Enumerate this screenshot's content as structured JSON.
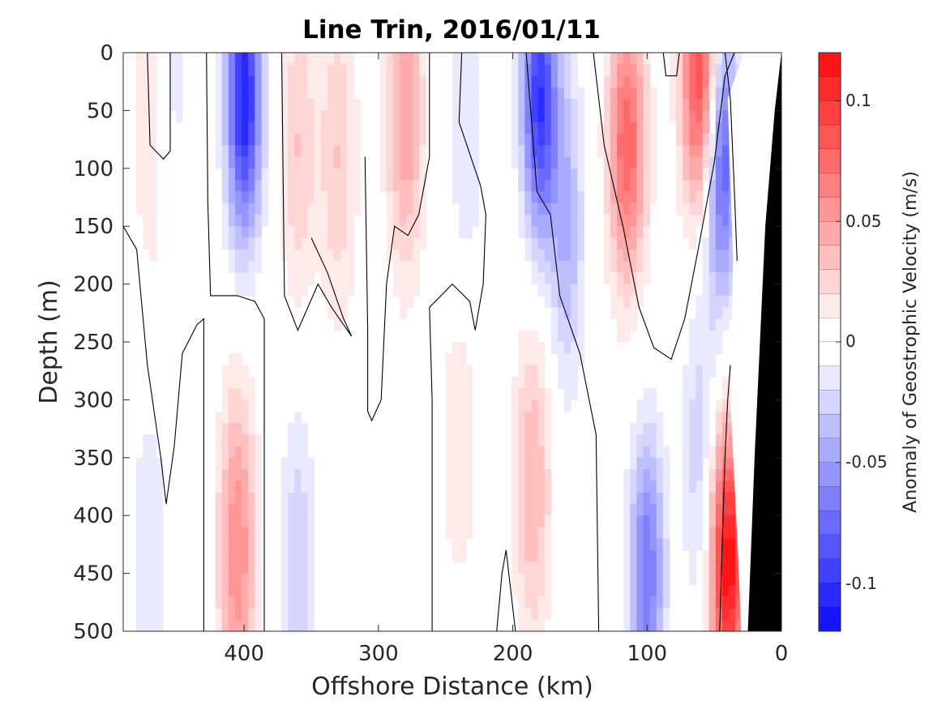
{
  "chart_data": {
    "type": "heatmap",
    "title": "Line Trin, 2016/01/11",
    "xlabel": "Offshore Distance (km)",
    "ylabel": "Depth (m)",
    "xlim": [
      490,
      0
    ],
    "ylim": [
      0,
      500
    ],
    "x_reversed": true,
    "y_reversed": true,
    "xticks": [
      "400",
      "300",
      "200",
      "100",
      "0"
    ],
    "yticks": [
      "0",
      "50",
      "100",
      "150",
      "200",
      "250",
      "300",
      "350",
      "400",
      "450",
      "500"
    ],
    "colorbar": {
      "label": "Anomaly of Geostrophic Velocity (m/s)",
      "range": [
        -0.12,
        0.12
      ],
      "step": 0.01,
      "ticks": [
        "0.1",
        "0.05",
        "0",
        "-0.05",
        "-0.1"
      ],
      "positive_color": "#ff0000",
      "negative_color": "#0000ff",
      "zero_color": "#ffffff"
    },
    "zero_contour_color": "#000000",
    "land_color": "#000000",
    "features": [
      {
        "kind": "positive",
        "x": 470,
        "depth": 40,
        "peak": 0.02
      },
      {
        "kind": "positive",
        "x": 460,
        "depth": 150,
        "peak": 0.01
      },
      {
        "kind": "negative",
        "x": 455,
        "depth": 50,
        "peak": -0.02
      },
      {
        "kind": "negative",
        "x": 400,
        "depth": 40,
        "peak": -0.11
      },
      {
        "kind": "positive",
        "x": 405,
        "depth": 430,
        "peak": 0.06
      },
      {
        "kind": "positive",
        "x": 360,
        "depth": 80,
        "peak": 0.03
      },
      {
        "kind": "positive",
        "x": 330,
        "depth": 90,
        "peak": 0.03
      },
      {
        "kind": "negative",
        "x": 360,
        "depth": 450,
        "peak": -0.03
      },
      {
        "kind": "negative",
        "x": 470,
        "depth": 430,
        "peak": -0.02
      },
      {
        "kind": "positive",
        "x": 280,
        "depth": 50,
        "peak": 0.05
      },
      {
        "kind": "positive",
        "x": 240,
        "depth": 330,
        "peak": 0.02
      },
      {
        "kind": "negative",
        "x": 235,
        "depth": 80,
        "peak": -0.02
      },
      {
        "kind": "negative",
        "x": 180,
        "depth": 40,
        "peak": -0.1
      },
      {
        "kind": "negative",
        "x": 160,
        "depth": 150,
        "peak": -0.04
      },
      {
        "kind": "positive",
        "x": 185,
        "depth": 370,
        "peak": 0.04
      },
      {
        "kind": "positive",
        "x": 115,
        "depth": 80,
        "peak": 0.08
      },
      {
        "kind": "positive",
        "x": 60,
        "depth": 20,
        "peak": 0.1
      },
      {
        "kind": "negative",
        "x": 45,
        "depth": 90,
        "peak": -0.09
      },
      {
        "kind": "negative",
        "x": 100,
        "depth": 450,
        "peak": -0.07
      },
      {
        "kind": "negative",
        "x": 60,
        "depth": 350,
        "peak": -0.03
      },
      {
        "kind": "positive",
        "x": 40,
        "depth": 440,
        "peak": 0.12
      }
    ]
  }
}
